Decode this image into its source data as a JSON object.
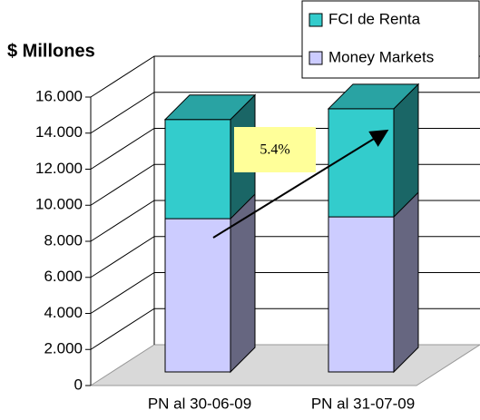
{
  "chart_data": {
    "type": "bar3d_stacked",
    "title": "$ Millones",
    "categories": [
      "PN al 30-06-09",
      "PN al 31-07-09"
    ],
    "series": [
      {
        "name": "Money Markets",
        "color": "#ccccff",
        "values": [
          8500,
          8600
        ]
      },
      {
        "name": "FCI de Renta",
        "color": "#33cccc",
        "values": [
          5500,
          6000
        ]
      }
    ],
    "ylim": [
      0,
      16000
    ],
    "yticks": [
      0,
      {
        "value": 2000,
        "label": "2.000"
      },
      {
        "value": 4000,
        "label": "4.000"
      },
      {
        "value": 6000,
        "label": "6.000"
      },
      {
        "value": 8000,
        "label": "8.000"
      },
      {
        "value": 10000,
        "label": "10.000"
      },
      {
        "value": 12000,
        "label": "12.000"
      },
      {
        "value": 14000,
        "label": "14.000"
      },
      {
        "value": 16000,
        "label": "16.000"
      }
    ],
    "annotation": "5.4%",
    "grid": true
  }
}
